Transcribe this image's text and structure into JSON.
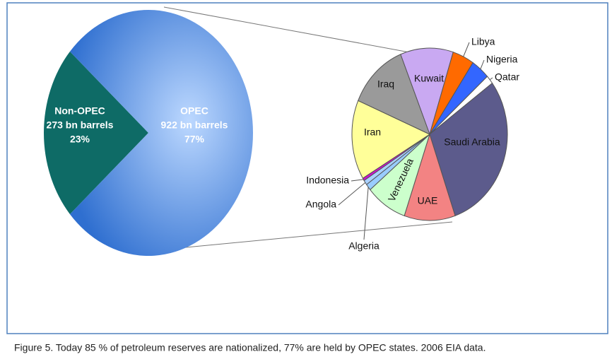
{
  "chart_data": [
    {
      "type": "pie",
      "categories": [
        "Non-OPEC",
        "OPEC"
      ],
      "detail_labels": [
        "273 bn barrels",
        "922 bn barrels"
      ],
      "values": [
        23,
        77
      ],
      "value_labels": [
        "23%",
        "77%"
      ],
      "colors": [
        "#0e6b66",
        "#3d7fdc"
      ]
    },
    {
      "type": "pie",
      "categories": [
        "Kuwait",
        "Libya",
        "Nigeria",
        "Qatar",
        "Saudi Arabia",
        "UAE",
        "Venezuela",
        "Algeria",
        "Angola",
        "Indonesia",
        "Iran",
        "Iraq"
      ],
      "values": [
        11,
        4.5,
        3.9,
        1.6,
        29.8,
        10.6,
        8.6,
        1.2,
        0.9,
        0.5,
        14.9,
        12.5
      ],
      "colors": [
        "#c9a9f2",
        "#ff6a00",
        "#3366ff",
        "#ffffff",
        "#5c5b8c",
        "#f38383",
        "#ccffcc",
        "#99ccff",
        "#a9d0ff",
        "#cc11cc",
        "#ffff99",
        "#9a9a9a"
      ]
    }
  ],
  "caption": "Figure 5. Today 85 % of petroleum reserves are nationalized, 77% are held by OPEC states. 2006 EIA data."
}
